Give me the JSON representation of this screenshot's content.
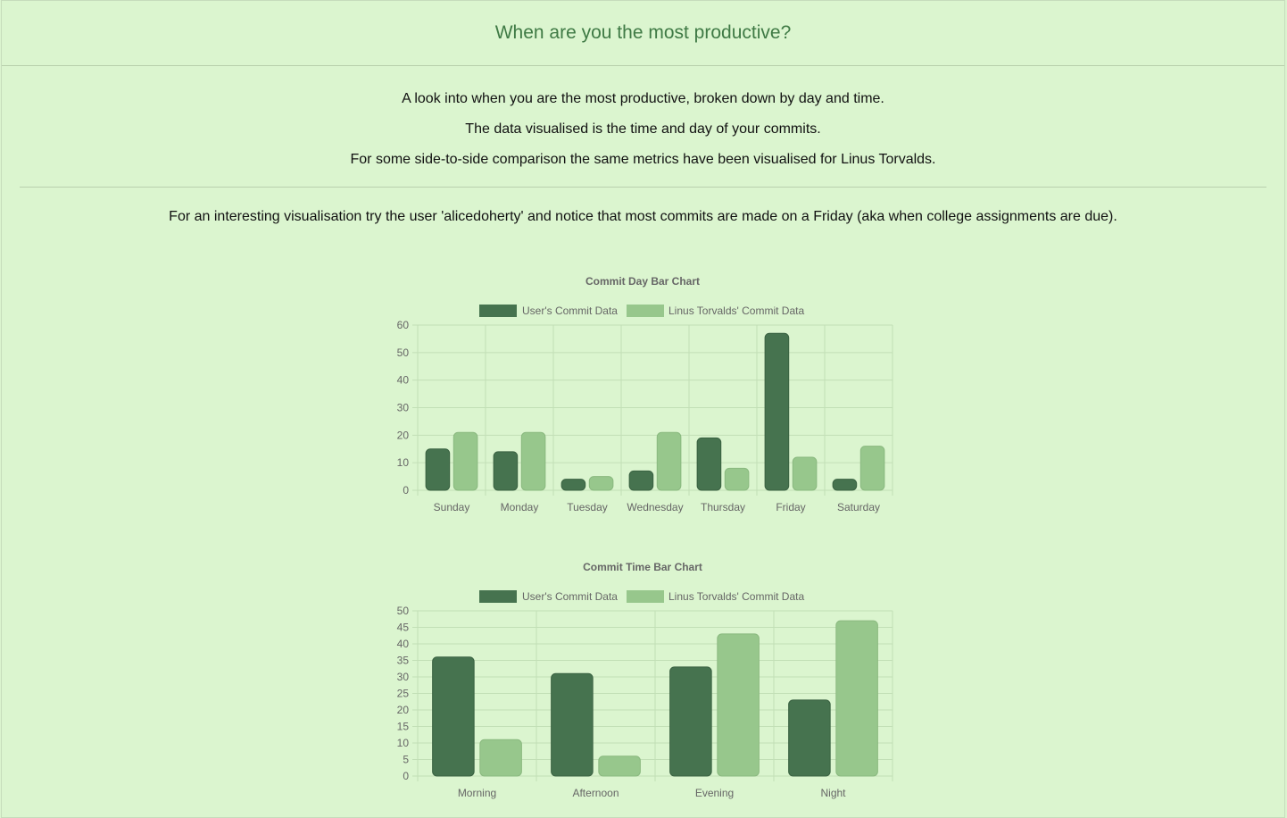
{
  "header": {
    "title": "When are you the most productive?"
  },
  "intro": {
    "line1": "A look into when you are the most productive, broken down by day and time.",
    "line2": "The data visualised is the time and day of your commits.",
    "line3": "For some side-to-side comparison the same metrics have been visualised for Linus Torvalds.",
    "hint": "For an interesting visualisation try the user 'alicedoherty' and notice that most commits are made on a Friday (aka when college assignments are due)."
  },
  "colors": {
    "user": "#46734f",
    "linus": "#97c78c",
    "grid": "#c2dfb6",
    "text": "#666666"
  },
  "chart_data": [
    {
      "type": "bar",
      "title": "Commit Day Bar Chart",
      "categories": [
        "Sunday",
        "Monday",
        "Tuesday",
        "Wednesday",
        "Thursday",
        "Friday",
        "Saturday"
      ],
      "series": [
        {
          "name": "User's Commit Data",
          "values": [
            15,
            14,
            4,
            7,
            19,
            57,
            4
          ]
        },
        {
          "name": "Linus Torvalds' Commit Data",
          "values": [
            21,
            21,
            5,
            21,
            8,
            12,
            16
          ]
        }
      ],
      "yticks": [
        "0",
        "10",
        "20",
        "30",
        "40",
        "50",
        "60"
      ],
      "ylim": [
        0,
        60
      ],
      "legend": "top",
      "grid": true
    },
    {
      "type": "bar",
      "title": "Commit Time Bar Chart",
      "categories": [
        "Morning",
        "Afternoon",
        "Evening",
        "Night"
      ],
      "series": [
        {
          "name": "User's Commit Data",
          "values": [
            36,
            31,
            33,
            23
          ]
        },
        {
          "name": "Linus Torvalds' Commit Data",
          "values": [
            11,
            6,
            43,
            47
          ]
        }
      ],
      "yticks": [
        "0",
        "5",
        "10",
        "15",
        "20",
        "25",
        "30",
        "35",
        "40",
        "45",
        "50"
      ],
      "ylim": [
        0,
        50
      ],
      "legend": "top",
      "grid": true
    }
  ]
}
